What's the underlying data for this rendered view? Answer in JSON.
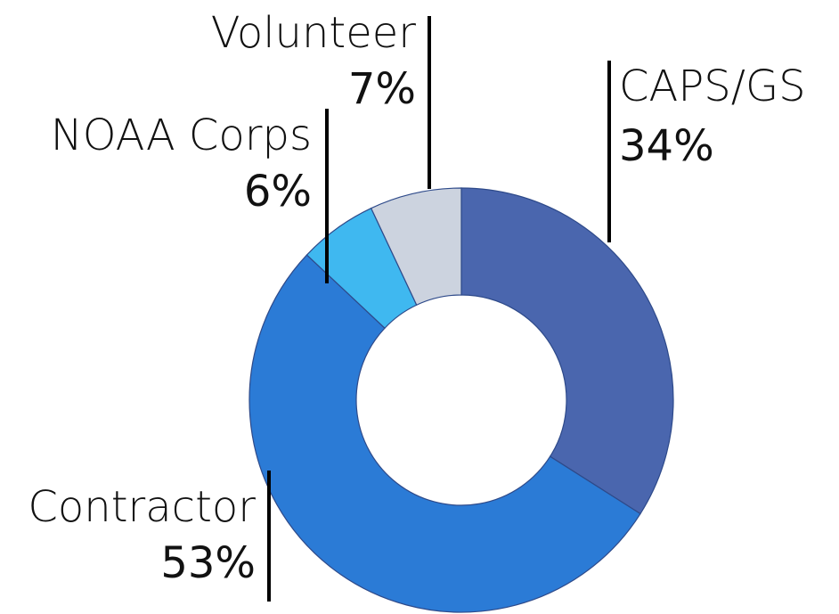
{
  "chart_data": {
    "type": "donut",
    "categories": [
      "CAPS/GS",
      "Contractor",
      "NOAA Corps",
      "Volunteer"
    ],
    "values": [
      34,
      53,
      6,
      7
    ],
    "value_labels": [
      "34%",
      "53%",
      "6%",
      "7%"
    ],
    "colors": [
      "#4a66ae",
      "#2b7bd6",
      "#3fb8f0",
      "#ccd3df"
    ]
  }
}
